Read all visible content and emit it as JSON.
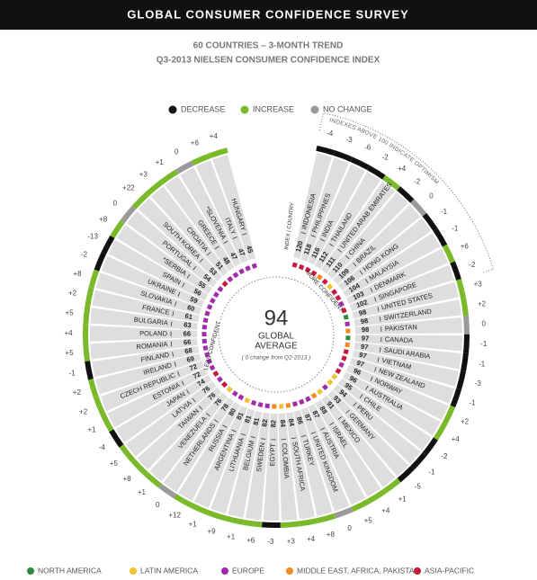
{
  "header": {
    "title": "GLOBAL CONSUMER CONFIDENCE SURVEY"
  },
  "subtitle": [
    "60 COUNTRIES – 3-MONTH TREND",
    "Q3-2013 NIELSEN CONSUMER CONFIDENCE INDEX"
  ],
  "change_legend": [
    {
      "label": "DECREASE",
      "color": "#111111"
    },
    {
      "label": "INCREASE",
      "color": "#7ab929"
    },
    {
      "label": "NO CHANGE",
      "color": "#9a9a9a"
    }
  ],
  "region_legend": [
    {
      "label": "NORTH AMERICA",
      "color": "#2e8b3e"
    },
    {
      "label": "LATIN AMERICA",
      "color": "#f2c12e"
    },
    {
      "label": "EUROPE",
      "color": "#a12ca8"
    },
    {
      "label": "MIDDLE EAST, AFRICA, PAKISTAN",
      "color": "#f28a1c"
    },
    {
      "label": "ASIA-PACIFIC",
      "color": "#c8173a"
    }
  ],
  "center": {
    "value": 94,
    "label_lines": [
      "GLOBAL",
      "AVERAGE"
    ],
    "note": "( 0 change  from Q2-2013 )"
  },
  "annotations": {
    "less": "LESS CONFIDENT",
    "more": "MORE CONFIDENT",
    "columns": "INDEX | COUNTRY",
    "optimism": "INDEXES ABOVE 100 INDICATE OPTIMISM"
  },
  "countries": [
    {
      "name": "INDONESIA",
      "index": 120,
      "change": -4,
      "change_label": "-4",
      "region": "ASIA-PACIFIC"
    },
    {
      "name": "PHILIPPINES",
      "index": 118,
      "change": -3,
      "change_label": "-3",
      "region": "ASIA-PACIFIC"
    },
    {
      "name": "INDIA",
      "index": 116,
      "change": -6,
      "change_label": "-6",
      "region": "ASIA-PACIFIC"
    },
    {
      "name": "THAILAND",
      "index": 112,
      "change": -2,
      "change_label": "-2",
      "region": "ASIA-PACIFIC"
    },
    {
      "name": "UNITED ARAB EMIRATES",
      "index": 111,
      "change": 4,
      "change_label": "+4",
      "region": "MIDDLE EAST, AFRICA, PAKISTAN"
    },
    {
      "name": "CHINA",
      "index": 110,
      "change": -2,
      "change_label": "-2",
      "region": "ASIA-PACIFIC"
    },
    {
      "name": "BRAZIL",
      "index": 109,
      "change": 0,
      "change_label": "0",
      "region": "LATIN AMERICA"
    },
    {
      "name": "HONG KONG",
      "index": 106,
      "change": -1,
      "change_label": "-1",
      "region": "ASIA-PACIFIC"
    },
    {
      "name": "MALAYSIA",
      "index": 104,
      "change": -1,
      "change_label": "-1",
      "region": "ASIA-PACIFIC"
    },
    {
      "name": "DENMARK",
      "index": 103,
      "change": 6,
      "change_label": "+6",
      "region": "EUROPE"
    },
    {
      "name": "SINGAPORE",
      "index": 102,
      "change": -2,
      "change_label": "-2",
      "region": "ASIA-PACIFIC"
    },
    {
      "name": "UNITED STATES",
      "index": 98,
      "change": 3,
      "change_label": "+3",
      "region": "NORTH AMERICA"
    },
    {
      "name": "SWITZERLAND",
      "index": 98,
      "change": 2,
      "change_label": "+2",
      "region": "EUROPE"
    },
    {
      "name": "PAKISTAN",
      "index": 98,
      "change": 0,
      "change_label": "0",
      "region": "MIDDLE EAST, AFRICA, PAKISTAN"
    },
    {
      "name": "CANADA",
      "index": 97,
      "change": -1,
      "change_label": "-1",
      "region": "NORTH AMERICA"
    },
    {
      "name": "SAUDI ARABIA",
      "index": 97,
      "change": -1,
      "change_label": "-1",
      "region": "MIDDLE EAST, AFRICA, PAKISTAN"
    },
    {
      "name": "VIETNAM",
      "index": 97,
      "change": -3,
      "change_label": "-3",
      "region": "ASIA-PACIFIC"
    },
    {
      "name": "NEW ZEALAND",
      "index": 97,
      "change": -1,
      "change_label": "-1",
      "region": "ASIA-PACIFIC"
    },
    {
      "name": "NORWAY",
      "index": 96,
      "change": 2,
      "change_label": "+2",
      "region": "EUROPE"
    },
    {
      "name": "AUSTRALIA",
      "index": 96,
      "change": 4,
      "change_label": "+4",
      "region": "ASIA-PACIFIC"
    },
    {
      "name": "CHILE",
      "index": 95,
      "change": -2,
      "change_label": "-2",
      "region": "LATIN AMERICA"
    },
    {
      "name": "PERU",
      "index": 94,
      "change": -1,
      "change_label": "-1",
      "region": "LATIN AMERICA"
    },
    {
      "name": "GERMANY",
      "index": 93,
      "change": -5,
      "change_label": "-5",
      "region": "EUROPE"
    },
    {
      "name": "MEXICO",
      "index": 91,
      "change": 1,
      "change_label": "+1",
      "region": "LATIN AMERICA"
    },
    {
      "name": "ISRAEL",
      "index": 88,
      "change": 4,
      "change_label": "+4",
      "region": "MIDDLE EAST, AFRICA, PAKISTAN"
    },
    {
      "name": "AUSTRIA",
      "index": 87,
      "change": 5,
      "change_label": "+5",
      "region": "EUROPE"
    },
    {
      "name": "UNITED KINGDOM",
      "index": 87,
      "change": 0,
      "change_label": "0",
      "region": "EUROPE"
    },
    {
      "name": "TURKEY",
      "index": 86,
      "change": 8,
      "change_label": "+8",
      "region": "EUROPE"
    },
    {
      "name": "SOUTH AFRICA",
      "index": 84,
      "change": 4,
      "change_label": "+4",
      "region": "MIDDLE EAST, AFRICA, PAKISTAN"
    },
    {
      "name": "COLOMBIA",
      "index": 84,
      "change": 3,
      "change_label": "+3",
      "region": "LATIN AMERICA"
    },
    {
      "name": "EGYPT",
      "index": 82,
      "change": -3,
      "change_label": "-3",
      "region": "MIDDLE EAST, AFRICA, PAKISTAN"
    },
    {
      "name": "SWEDEN",
      "index": 82,
      "change": 6,
      "change_label": "+6",
      "region": "EUROPE"
    },
    {
      "name": "BELGIUM",
      "index": 81,
      "change": 1,
      "change_label": "+1",
      "region": "EUROPE"
    },
    {
      "name": "LITHUANIA",
      "index": 81,
      "change": 9,
      "change_label": "+9",
      "region": "EUROPE"
    },
    {
      "name": "ARGENTINA",
      "index": 81,
      "change": 1,
      "change_label": "+1",
      "region": "LATIN AMERICA"
    },
    {
      "name": "RUSSIA",
      "index": 80,
      "change": 12,
      "change_label": "+12",
      "region": "EUROPE"
    },
    {
      "name": "NETHERLANDS",
      "index": 78,
      "change": 0,
      "change_label": "0",
      "region": "EUROPE"
    },
    {
      "name": "VENEZUELA",
      "index": 76,
      "change": 1,
      "change_label": "+1",
      "region": "LATIN AMERICA"
    },
    {
      "name": "TAIWAN",
      "index": 76,
      "change": 8,
      "change_label": "+8",
      "region": "ASIA-PACIFIC"
    },
    {
      "name": "LATVIA",
      "index": 76,
      "change": 5,
      "change_label": "+5",
      "region": "EUROPE"
    },
    {
      "name": "JAPAN",
      "index": 74,
      "change": -4,
      "change_label": "-4",
      "region": "ASIA-PACIFIC"
    },
    {
      "name": "ESTONIA",
      "index": 72,
      "change": 1,
      "change_label": "+1",
      "region": "EUROPE"
    },
    {
      "name": "CZECH REPUBLIC",
      "index": 72,
      "change": 2,
      "change_label": "+2",
      "region": "EUROPE"
    },
    {
      "name": "IRELAND",
      "index": 69,
      "change": 2,
      "change_label": "+2",
      "region": "EUROPE"
    },
    {
      "name": "FINLAND",
      "index": 68,
      "change": -1,
      "change_label": "-1",
      "region": "EUROPE"
    },
    {
      "name": "ROMANIA",
      "index": 66,
      "change": 5,
      "change_label": "+5",
      "region": "EUROPE"
    },
    {
      "name": "POLAND",
      "index": 66,
      "change": 4,
      "change_label": "+4",
      "region": "EUROPE"
    },
    {
      "name": "BULGARIA",
      "index": 63,
      "change": 5,
      "change_label": "+5",
      "region": "EUROPE"
    },
    {
      "name": "FRANCE",
      "index": 61,
      "change": 2,
      "change_label": "+2",
      "region": "EUROPE"
    },
    {
      "name": "SLOVAKIA",
      "index": 60,
      "change": 8,
      "change_label": "+8",
      "region": "EUROPE"
    },
    {
      "name": "UKRAINE",
      "index": 59,
      "change": -2,
      "change_label": "-2",
      "region": "EUROPE"
    },
    {
      "name": "SPAIN",
      "index": 56,
      "change": -13,
      "change_label": "-13",
      "region": "EUROPE"
    },
    {
      "name": "*SERBIA",
      "index": 55,
      "change": 8,
      "change_label": "+8",
      "region": "EUROPE"
    },
    {
      "name": "PORTUGAL",
      "index": 54,
      "change": 0,
      "change_label": "0",
      "region": "EUROPE"
    },
    {
      "name": "SOUTH KOREA",
      "index": 53,
      "change": 22,
      "change_label": "+22",
      "region": "ASIA-PACIFIC"
    },
    {
      "name": "CROATIA",
      "index": 51,
      "change": 3,
      "change_label": "+3",
      "region": "EUROPE"
    },
    {
      "name": "GREECE",
      "index": 48,
      "change": 1,
      "change_label": "+1",
      "region": "EUROPE"
    },
    {
      "name": "*SLOVENIA",
      "index": 47,
      "change": 0,
      "change_label": "0",
      "region": "EUROPE"
    },
    {
      "name": "ITALY",
      "index": 47,
      "change": 6,
      "change_label": "+6",
      "region": "EUROPE"
    },
    {
      "name": "HUNGARY",
      "index": 45,
      "change": 4,
      "change_label": "+4",
      "region": "EUROPE"
    }
  ]
}
